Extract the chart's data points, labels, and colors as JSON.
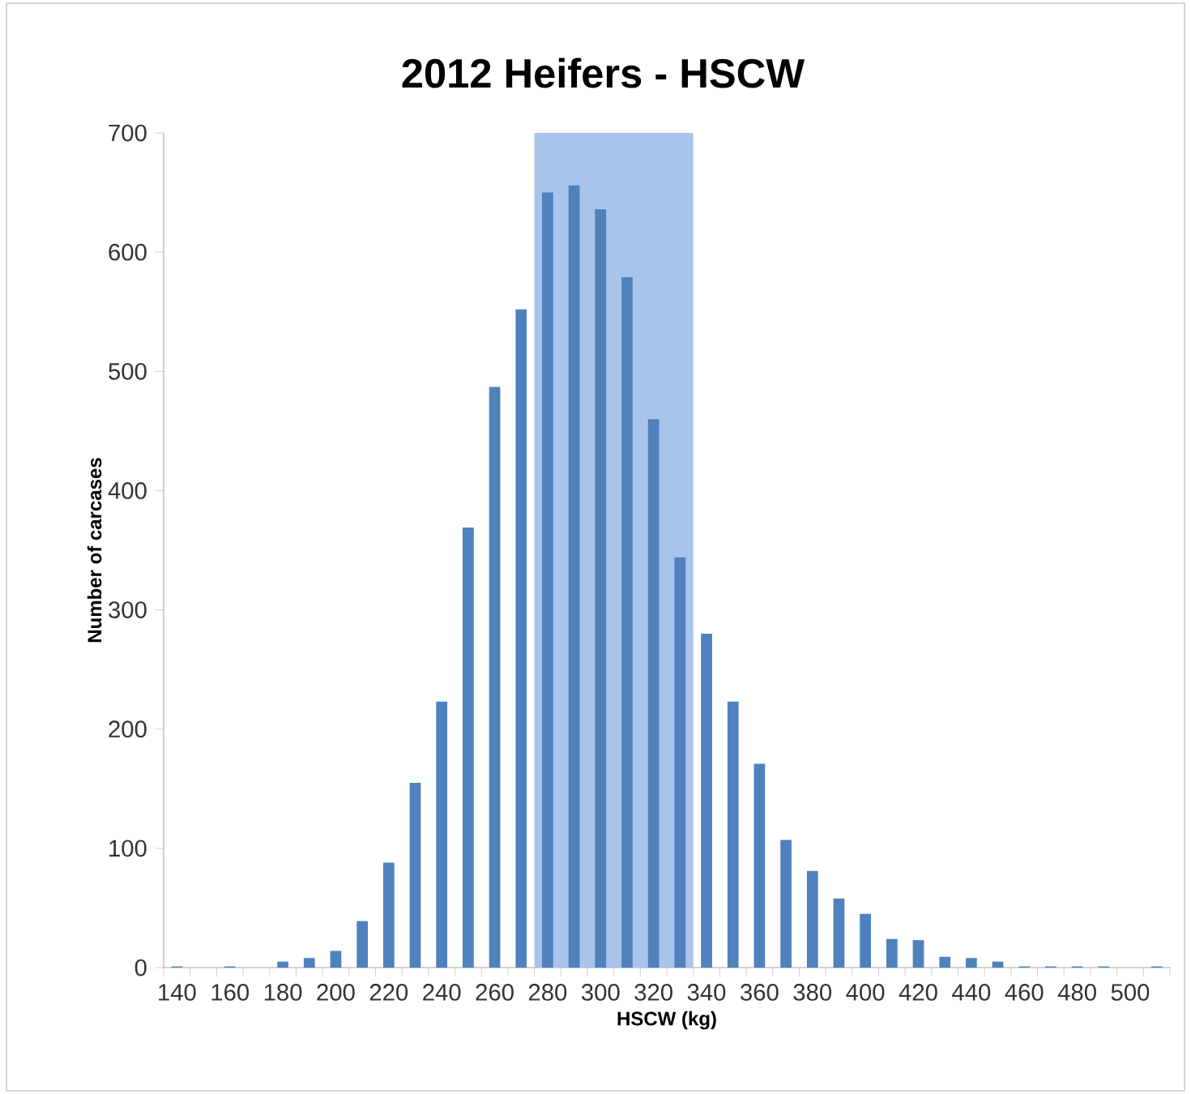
{
  "chart_data": {
    "type": "bar",
    "title": "2012 Heifers - HSCW",
    "xlabel": "HSCW (kg)",
    "ylabel": "Number of carcases",
    "x": [
      140,
      150,
      160,
      170,
      180,
      190,
      200,
      210,
      220,
      230,
      240,
      250,
      260,
      270,
      280,
      290,
      300,
      310,
      320,
      330,
      340,
      350,
      360,
      370,
      380,
      390,
      400,
      410,
      420,
      430,
      440,
      450,
      460,
      470,
      480,
      490,
      500,
      510
    ],
    "values": [
      1,
      0,
      1,
      0,
      5,
      8,
      14,
      39,
      88,
      155,
      223,
      369,
      487,
      552,
      650,
      656,
      636,
      579,
      460,
      344,
      280,
      223,
      171,
      107,
      81,
      58,
      45,
      24,
      23,
      9,
      8,
      5,
      1,
      1,
      1,
      1,
      0,
      1
    ],
    "color": "#4f81bd",
    "xlim": [
      135,
      515
    ],
    "xticks": [
      140,
      160,
      180,
      200,
      220,
      240,
      260,
      280,
      300,
      320,
      340,
      360,
      380,
      400,
      420,
      440,
      460,
      480,
      500
    ],
    "ylim": [
      0,
      700
    ],
    "yticks": [
      0,
      100,
      200,
      300,
      400,
      500,
      600,
      700
    ],
    "bands": [
      {
        "axis": "x",
        "from": 275,
        "to": 335,
        "color": "#a9c4ea"
      }
    ],
    "grid": false
  }
}
